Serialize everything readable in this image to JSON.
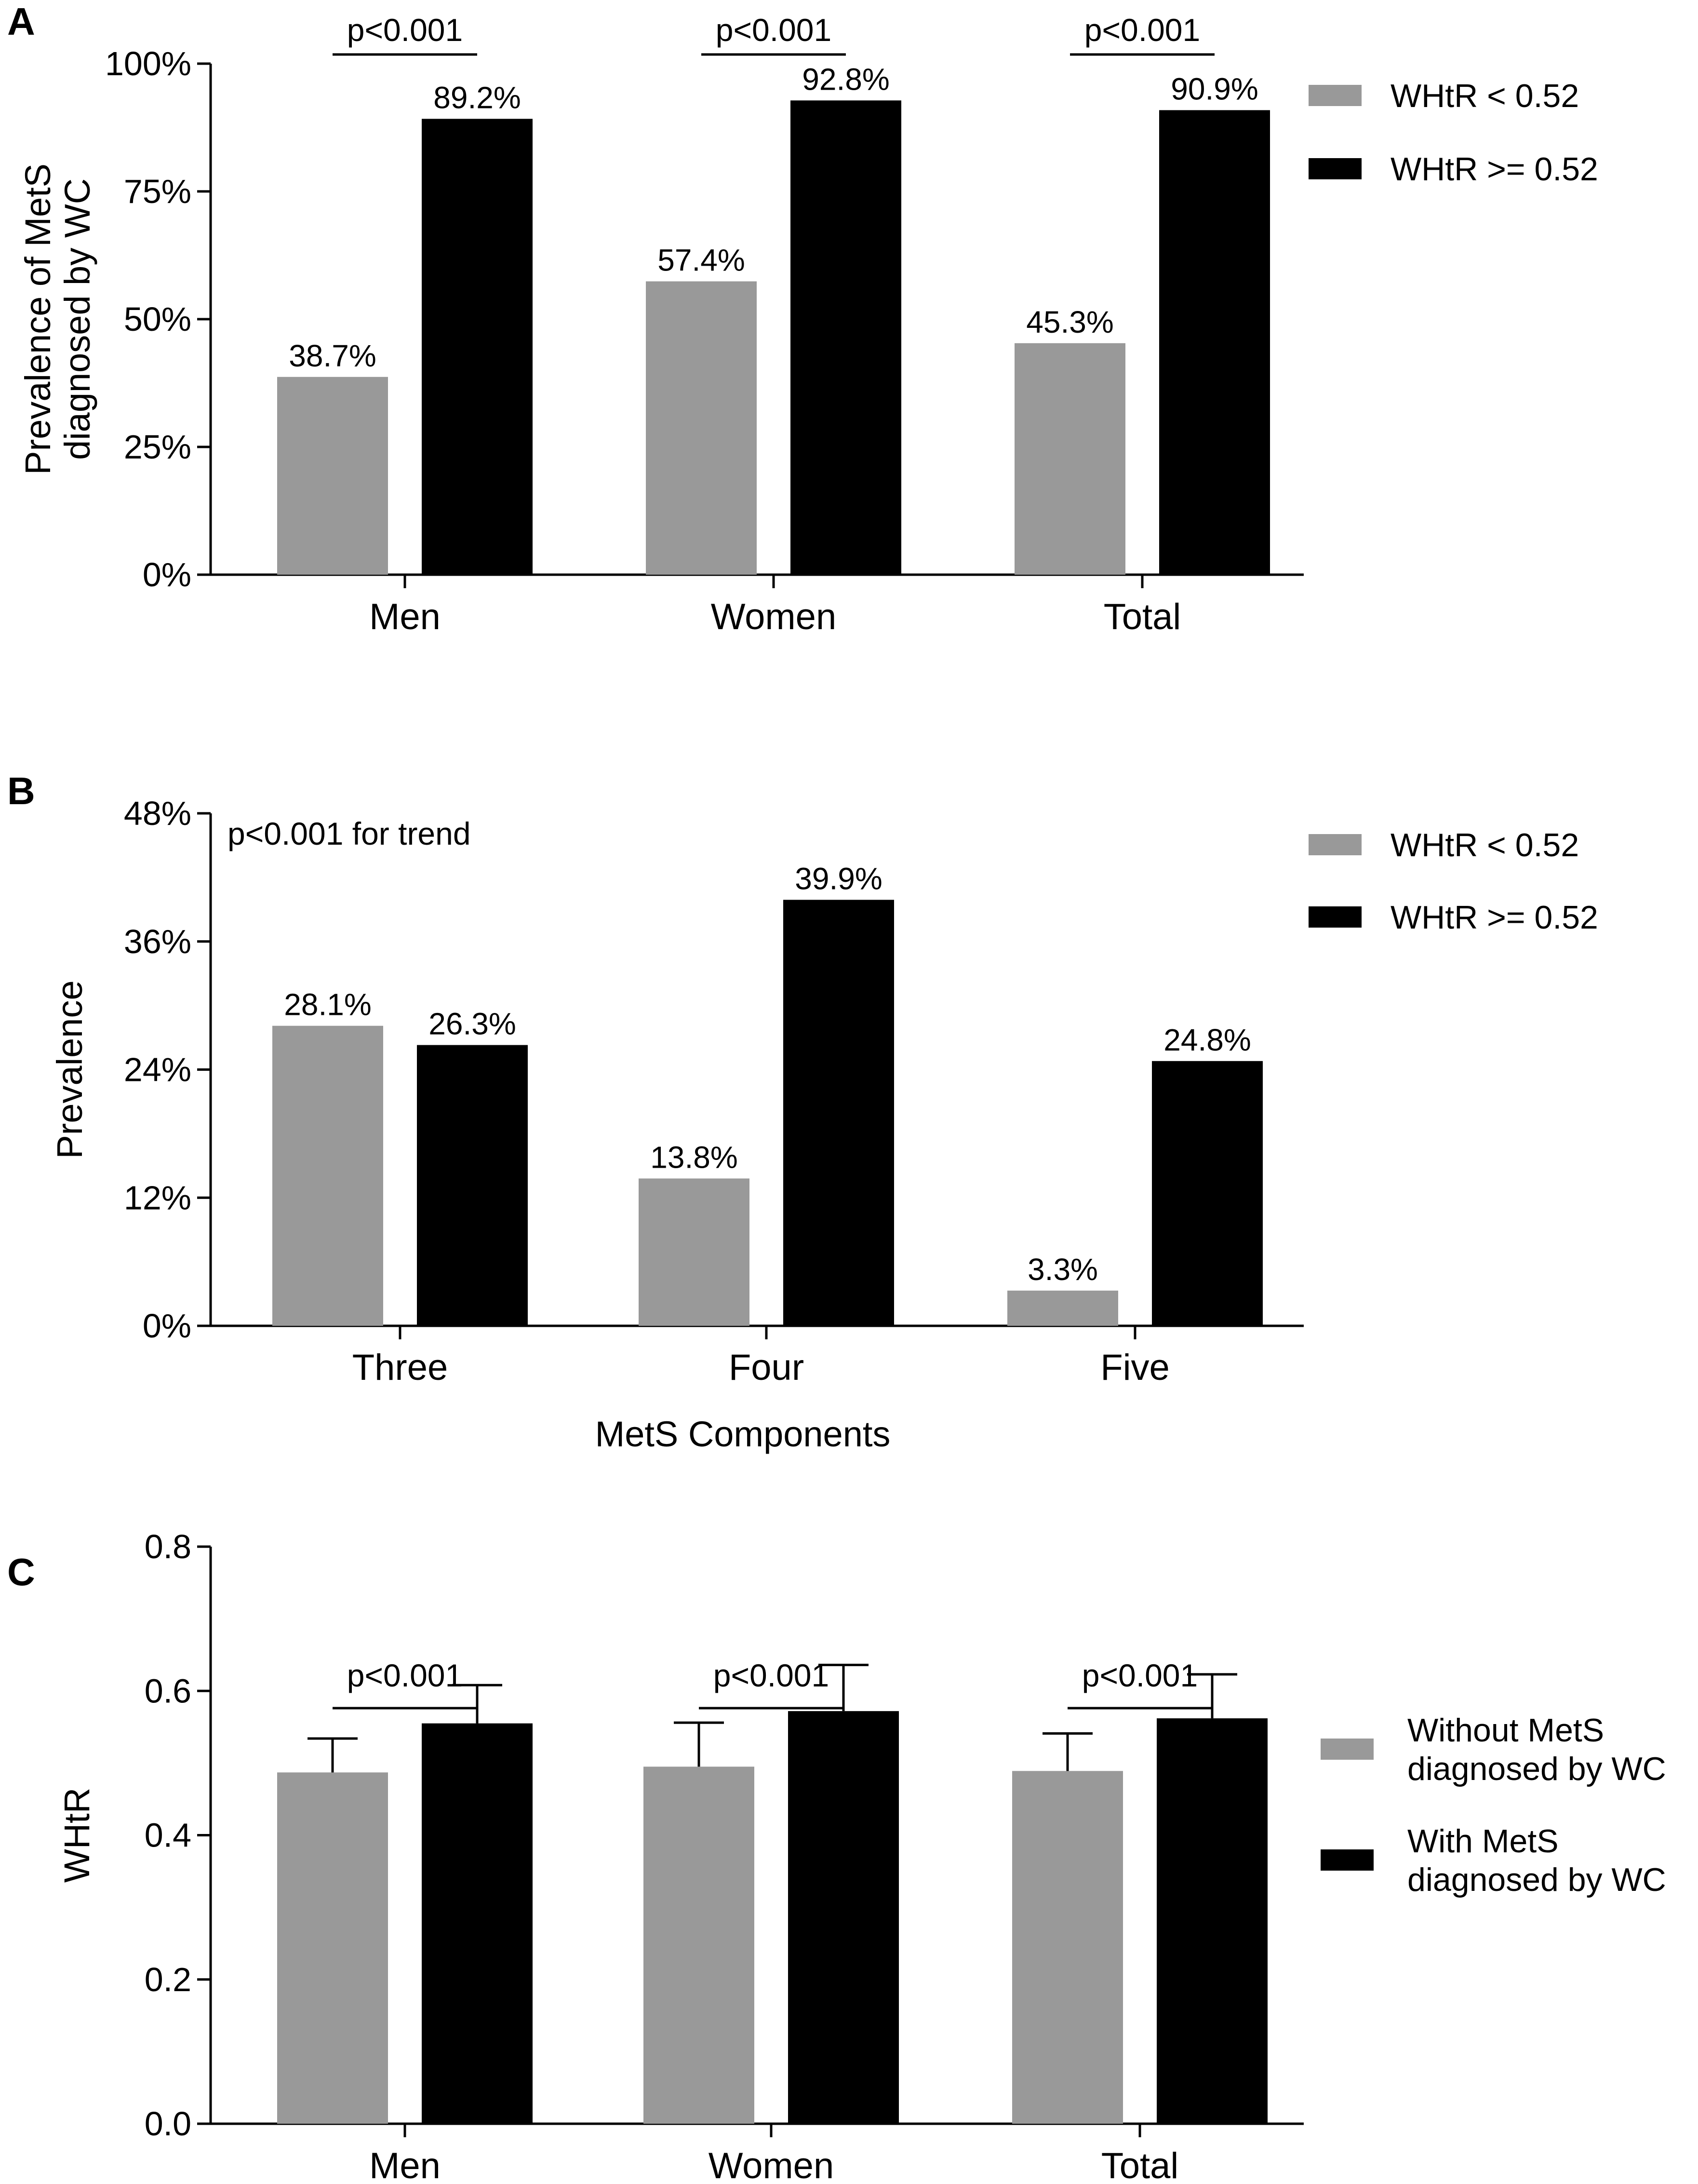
{
  "chart_data": [
    {
      "panel": "A",
      "type": "bar",
      "categories": [
        "Men",
        "Women",
        "Total"
      ],
      "series": [
        {
          "name": "WHtR < 0.52",
          "color": "#999999",
          "values": [
            38.7,
            57.4,
            45.3
          ],
          "labels": [
            "38.7%",
            "57.4%",
            "45.3%"
          ]
        },
        {
          "name": "WHtR >= 0.52",
          "color": "#000000",
          "values": [
            89.2,
            92.8,
            90.9
          ],
          "labels": [
            "89.2%",
            "92.8%",
            "90.9%"
          ]
        }
      ],
      "ylabel_lines": [
        "Prevalence of MetS",
        "diagnosed by WC"
      ],
      "xlabel": "",
      "ylim": [
        0,
        100
      ],
      "yticks": [
        0,
        25,
        50,
        75,
        100
      ],
      "ytick_labels": [
        "0%",
        "25%",
        "50%",
        "75%",
        "100%"
      ],
      "significance": [
        {
          "category": "Men",
          "text": "p<0.001"
        },
        {
          "category": "Women",
          "text": "p<0.001"
        },
        {
          "category": "Total",
          "text": "p<0.001"
        }
      ],
      "annotation": "",
      "legend_position": "right"
    },
    {
      "panel": "B",
      "type": "bar",
      "categories": [
        "Three",
        "Four",
        "Five"
      ],
      "series": [
        {
          "name": "WHtR < 0.52",
          "color": "#999999",
          "values": [
            28.1,
            13.8,
            3.3
          ],
          "labels": [
            "28.1%",
            "13.8%",
            "3.3%"
          ]
        },
        {
          "name": "WHtR >= 0.52",
          "color": "#000000",
          "values": [
            26.3,
            39.9,
            24.8
          ],
          "labels": [
            "26.3%",
            "39.9%",
            "24.8%"
          ]
        }
      ],
      "ylabel_lines": [
        "Prevalence"
      ],
      "xlabel": "MetS Components",
      "ylim": [
        0,
        48
      ],
      "yticks": [
        0,
        12,
        24,
        36,
        48
      ],
      "ytick_labels": [
        "0%",
        "12%",
        "24%",
        "36%",
        "48%"
      ],
      "significance": [],
      "annotation": "p<0.001 for trend",
      "legend_position": "right"
    },
    {
      "panel": "C",
      "type": "bar",
      "categories": [
        "Men",
        "Women",
        "Total"
      ],
      "series": [
        {
          "name": "Without MetS diagnosed by WC",
          "legend_lines": [
            "Without MetS",
            "diagnosed by WC"
          ],
          "color": "#999999",
          "values": [
            0.487,
            0.495,
            0.489
          ],
          "errors": [
            0.047,
            0.061,
            0.052
          ]
        },
        {
          "name": "With MetS diagnosed by WC",
          "legend_lines": [
            "With MetS",
            "diagnosed by WC"
          ],
          "color": "#000000",
          "values": [
            0.555,
            0.572,
            0.562
          ],
          "errors": [
            0.053,
            0.064,
            0.061
          ]
        }
      ],
      "ylabel_lines": [
        "WHtR"
      ],
      "xlabel": "",
      "ylim": [
        0,
        0.8
      ],
      "yticks": [
        0,
        0.2,
        0.4,
        0.6,
        0.8
      ],
      "ytick_labels": [
        "0.0",
        "0.2",
        "0.4",
        "0.6",
        "0.8"
      ],
      "significance": [
        {
          "category": "Men",
          "text": "p<0.001"
        },
        {
          "category": "Women",
          "text": "p<0.001"
        },
        {
          "category": "Total",
          "text": "p<0.001"
        }
      ],
      "annotation": "",
      "legend_position": "right"
    }
  ]
}
